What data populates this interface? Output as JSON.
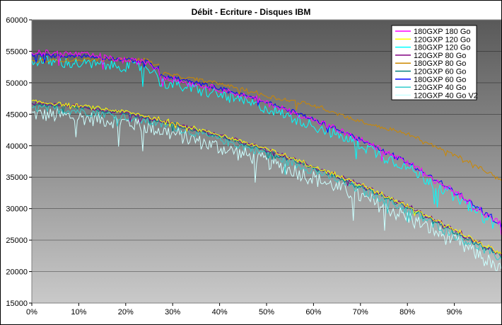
{
  "chart_data": {
    "type": "line",
    "title": "Débit - Ecriture - Disques IBM",
    "xlabel": "",
    "ylabel": "",
    "xlim": [
      0,
      1
    ],
    "ylim": [
      15000,
      60000
    ],
    "x_ticks": [
      "0%",
      "10%",
      "20%",
      "30%",
      "40%",
      "50%",
      "60%",
      "70%",
      "80%",
      "90%"
    ],
    "y_ticks": [
      "15000",
      "20000",
      "25000",
      "30000",
      "35000",
      "40000",
      "45000",
      "50000",
      "55000",
      "60000"
    ],
    "grid": "horizontal",
    "legend_position": "top-right",
    "series": [
      {
        "name": "180GXP 180 Go",
        "color": "#ff00ff",
        "noise": 500,
        "points": [
          [
            0,
            54800
          ],
          [
            0.1,
            54500
          ],
          [
            0.2,
            53500
          ],
          [
            0.25,
            53200
          ],
          [
            0.26,
            51300
          ],
          [
            0.3,
            50400
          ],
          [
            0.4,
            48900
          ],
          [
            0.5,
            46700
          ],
          [
            0.6,
            43900
          ],
          [
            0.7,
            40800
          ],
          [
            0.8,
            37000
          ],
          [
            0.9,
            32300
          ],
          [
            0.95,
            29600
          ],
          [
            1,
            27200
          ]
        ]
      },
      {
        "name": "120GXP 120 Go",
        "color": "#ffff00",
        "noise": 300,
        "points": [
          [
            0,
            47000
          ],
          [
            0.1,
            46300
          ],
          [
            0.2,
            45300
          ],
          [
            0.3,
            43600
          ],
          [
            0.4,
            41600
          ],
          [
            0.5,
            39300
          ],
          [
            0.6,
            36600
          ],
          [
            0.7,
            33600
          ],
          [
            0.8,
            30300
          ],
          [
            0.9,
            26400
          ],
          [
            1,
            22600
          ]
        ]
      },
      {
        "name": "180GXP 120 Go",
        "color": "#00ffff",
        "noise": 900,
        "points": [
          [
            0,
            53500
          ],
          [
            0.1,
            53000
          ],
          [
            0.2,
            52600
          ],
          [
            0.25,
            52400
          ],
          [
            0.26,
            50100
          ],
          [
            0.3,
            49600
          ],
          [
            0.4,
            48000
          ],
          [
            0.5,
            45800
          ],
          [
            0.6,
            43000
          ],
          [
            0.7,
            40000
          ],
          [
            0.8,
            36300
          ],
          [
            0.9,
            31700
          ],
          [
            0.95,
            29000
          ],
          [
            1,
            26800
          ]
        ]
      },
      {
        "name": "120GXP 80 Go",
        "color": "#800080",
        "noise": 300,
        "points": [
          [
            0,
            46800
          ],
          [
            0.1,
            46200
          ],
          [
            0.2,
            45100
          ],
          [
            0.3,
            43400
          ],
          [
            0.4,
            41500
          ],
          [
            0.5,
            39200
          ],
          [
            0.6,
            36500
          ],
          [
            0.7,
            33500
          ],
          [
            0.8,
            30200
          ],
          [
            0.9,
            26300
          ],
          [
            1,
            22400
          ]
        ]
      },
      {
        "name": "180GXP 80 Go",
        "color": "#cc8800",
        "noise": 300,
        "points": [
          [
            0,
            53400
          ],
          [
            0.1,
            53700
          ],
          [
            0.2,
            53700
          ],
          [
            0.25,
            53600
          ],
          [
            0.26,
            51600
          ],
          [
            0.4,
            49800
          ],
          [
            0.5,
            47800
          ],
          [
            0.6,
            46300
          ],
          [
            0.7,
            43700
          ],
          [
            0.8,
            41700
          ],
          [
            0.9,
            38300
          ],
          [
            1,
            34300
          ]
        ]
      },
      {
        "name": "120GXP 60 Go",
        "color": "#008080",
        "noise": 300,
        "points": [
          [
            0,
            46600
          ],
          [
            0.1,
            46000
          ],
          [
            0.2,
            45000
          ],
          [
            0.3,
            43300
          ],
          [
            0.4,
            41300
          ],
          [
            0.5,
            39000
          ],
          [
            0.6,
            36300
          ],
          [
            0.7,
            33300
          ],
          [
            0.8,
            30000
          ],
          [
            0.9,
            26100
          ],
          [
            1,
            22200
          ]
        ]
      },
      {
        "name": "180GXP 60 Go",
        "color": "#0000ff",
        "noise": 300,
        "points": [
          [
            0,
            54300
          ],
          [
            0.1,
            54300
          ],
          [
            0.2,
            53600
          ],
          [
            0.25,
            53300
          ],
          [
            0.26,
            51200
          ],
          [
            0.3,
            50700
          ],
          [
            0.4,
            49000
          ],
          [
            0.5,
            46800
          ],
          [
            0.6,
            44000
          ],
          [
            0.7,
            40800
          ],
          [
            0.8,
            37100
          ],
          [
            0.9,
            32400
          ],
          [
            0.95,
            29700
          ],
          [
            1,
            27200
          ]
        ]
      },
      {
        "name": "120GXP 40 Go",
        "color": "#33cccc",
        "noise": 700,
        "points": [
          [
            0,
            46000
          ],
          [
            0.1,
            45500
          ],
          [
            0.2,
            44600
          ],
          [
            0.3,
            42900
          ],
          [
            0.4,
            40900
          ],
          [
            0.5,
            38600
          ],
          [
            0.6,
            35900
          ],
          [
            0.7,
            32900
          ],
          [
            0.8,
            29600
          ],
          [
            0.9,
            25600
          ],
          [
            1,
            21800
          ]
        ]
      },
      {
        "name": "120GXP 40 Go V2",
        "color": "#ccffff",
        "noise": 1200,
        "points": [
          [
            0,
            45000
          ],
          [
            0.1,
            44500
          ],
          [
            0.2,
            43700
          ],
          [
            0.3,
            41800
          ],
          [
            0.4,
            39600
          ],
          [
            0.5,
            37400
          ],
          [
            0.6,
            34700
          ],
          [
            0.7,
            31700
          ],
          [
            0.8,
            28400
          ],
          [
            0.9,
            24600
          ],
          [
            0.95,
            22500
          ],
          [
            1,
            19500
          ]
        ]
      }
    ]
  }
}
